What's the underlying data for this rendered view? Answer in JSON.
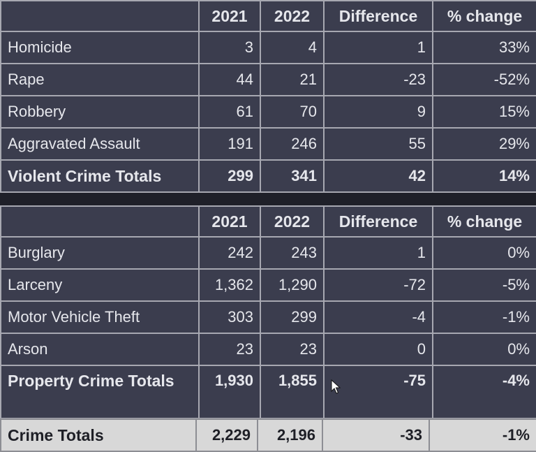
{
  "violent": {
    "headers": [
      "",
      "2021",
      "2022",
      "Difference",
      "% change"
    ],
    "rows": [
      {
        "name": "Homicide",
        "y2021": "3",
        "y2022": "4",
        "diff": "1",
        "pct": "33%"
      },
      {
        "name": "Rape",
        "y2021": "44",
        "y2022": "21",
        "diff": "-23",
        "pct": "-52%"
      },
      {
        "name": "Robbery",
        "y2021": "61",
        "y2022": "70",
        "diff": "9",
        "pct": "15%"
      },
      {
        "name": "Aggravated Assault",
        "y2021": "191",
        "y2022": "246",
        "diff": "55",
        "pct": "29%"
      }
    ],
    "total": {
      "name": "Violent Crime Totals",
      "y2021": "299",
      "y2022": "341",
      "diff": "42",
      "pct": "14%"
    }
  },
  "property": {
    "headers": [
      "",
      "2021",
      "2022",
      "Difference",
      "% change"
    ],
    "rows": [
      {
        "name": "Burglary",
        "y2021": "242",
        "y2022": "243",
        "diff": "1",
        "pct": "0%"
      },
      {
        "name": "Larceny",
        "y2021": "1,362",
        "y2022": "1,290",
        "diff": "-72",
        "pct": "-5%"
      },
      {
        "name": "Motor Vehicle Theft",
        "y2021": "303",
        "y2022": "299",
        "diff": "-4",
        "pct": "-1%"
      },
      {
        "name": "Arson",
        "y2021": "23",
        "y2022": "23",
        "diff": "0",
        "pct": "0%"
      }
    ],
    "total": {
      "name": "Property Crime Totals",
      "y2021": "1,930",
      "y2022": "1,855",
      "diff": "-75",
      "pct": "-4%"
    }
  },
  "grand_total": {
    "name": "Crime Totals",
    "y2021": "2,229",
    "y2022": "2,196",
    "diff": "-33",
    "pct": "-1%"
  }
}
